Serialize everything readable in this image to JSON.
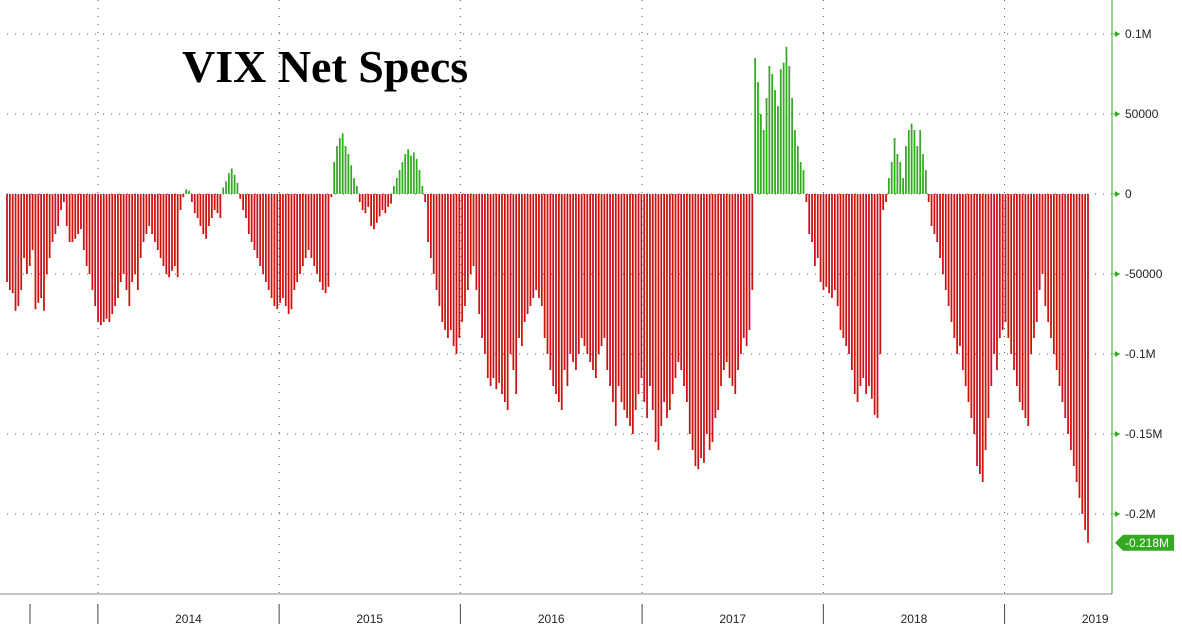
{
  "chart_data": {
    "type": "bar",
    "title": "VIX Net Specs",
    "xlabel": "",
    "ylabel": "",
    "frequency": "weekly",
    "x_start": "2013-07-02",
    "x_end": "2019-06-18",
    "ylim": [
      -240000,
      120000
    ],
    "grid": true,
    "colors": {
      "positive": "#33aa22",
      "negative": "#cc1111",
      "axis": "#33aa22",
      "last_label_bg": "#33aa22"
    },
    "y_ticks": [
      {
        "value": 100000,
        "label": "0.1M"
      },
      {
        "value": 50000,
        "label": "50000"
      },
      {
        "value": 0,
        "label": "0"
      },
      {
        "value": -50000,
        "label": "-50000"
      },
      {
        "value": -100000,
        "label": "-0.1M"
      },
      {
        "value": -150000,
        "label": "-0.15M"
      },
      {
        "value": -200000,
        "label": "-0.2M"
      }
    ],
    "x_ticks": [
      "2014",
      "2015",
      "2016",
      "2017",
      "2018",
      "2019"
    ],
    "last_value_label": "-0.218M",
    "values": [
      -55000,
      -60000,
      -62000,
      -73000,
      -70000,
      -60000,
      -40000,
      -50000,
      -45000,
      -35000,
      -72000,
      -68000,
      -65000,
      -73000,
      -50000,
      -40000,
      -30000,
      -25000,
      -20000,
      -10000,
      -5000,
      -20000,
      -30000,
      -30000,
      -28000,
      -25000,
      -22000,
      -35000,
      -45000,
      -50000,
      -60000,
      -70000,
      -80000,
      -82000,
      -80000,
      -78000,
      -80000,
      -75000,
      -70000,
      -65000,
      -55000,
      -50000,
      -60000,
      -70000,
      -55000,
      -50000,
      -60000,
      -40000,
      -30000,
      -25000,
      -20000,
      -25000,
      -30000,
      -35000,
      -40000,
      -45000,
      -50000,
      -52000,
      -48000,
      -45000,
      -52000,
      -10000,
      -2000,
      3000,
      2000,
      -5000,
      -12000,
      -15000,
      -20000,
      -25000,
      -28000,
      -20000,
      -15000,
      -10000,
      -12000,
      -15000,
      4000,
      8000,
      13000,
      16000,
      12000,
      7000,
      -3000,
      -10000,
      -15000,
      -25000,
      -30000,
      -35000,
      -40000,
      -45000,
      -50000,
      -55000,
      -60000,
      -65000,
      -70000,
      -72000,
      -68000,
      -65000,
      -70000,
      -75000,
      -72000,
      -60000,
      -55000,
      -50000,
      -45000,
      -40000,
      -35000,
      -40000,
      -45000,
      -50000,
      -55000,
      -60000,
      -62000,
      -58000,
      -2000,
      20000,
      30000,
      35000,
      38000,
      30000,
      25000,
      18000,
      10000,
      5000,
      -5000,
      -10000,
      -12000,
      -8000,
      -20000,
      -22000,
      -18000,
      -14000,
      -10000,
      -12000,
      -8000,
      -6000,
      5000,
      10000,
      15000,
      20000,
      25000,
      28000,
      24000,
      26000,
      22000,
      15000,
      5000,
      -5000,
      -30000,
      -40000,
      -50000,
      -60000,
      -70000,
      -80000,
      -85000,
      -90000,
      -85000,
      -95000,
      -100000,
      -90000,
      -80000,
      -70000,
      -60000,
      -50000,
      -45000,
      -60000,
      -75000,
      -90000,
      -100000,
      -115000,
      -120000,
      -115000,
      -122000,
      -118000,
      -125000,
      -130000,
      -135000,
      -100000,
      -110000,
      -125000,
      -90000,
      -95000,
      -80000,
      -75000,
      -70000,
      -65000,
      -60000,
      -65000,
      -70000,
      -90000,
      -100000,
      -110000,
      -120000,
      -125000,
      -130000,
      -135000,
      -110000,
      -120000,
      -100000,
      -105000,
      -110000,
      -100000,
      -90000,
      -95000,
      -100000,
      -105000,
      -110000,
      -115000,
      -100000,
      -95000,
      -90000,
      -110000,
      -120000,
      -130000,
      -145000,
      -120000,
      -130000,
      -135000,
      -140000,
      -145000,
      -150000,
      -135000,
      -125000,
      -115000,
      -130000,
      -140000,
      -120000,
      -135000,
      -155000,
      -160000,
      -145000,
      -130000,
      -140000,
      -135000,
      -125000,
      -115000,
      -105000,
      -110000,
      -120000,
      -130000,
      -150000,
      -160000,
      -170000,
      -172000,
      -165000,
      -168000,
      -150000,
      -160000,
      -155000,
      -140000,
      -135000,
      -120000,
      -110000,
      -105000,
      -115000,
      -120000,
      -125000,
      -110000,
      -100000,
      -90000,
      -95000,
      -85000,
      -60000,
      85000,
      70000,
      50000,
      40000,
      60000,
      80000,
      75000,
      65000,
      55000,
      78000,
      82000,
      92000,
      80000,
      60000,
      40000,
      30000,
      20000,
      15000,
      -5000,
      -25000,
      -30000,
      -45000,
      -40000,
      -55000,
      -60000,
      -58000,
      -62000,
      -65000,
      -60000,
      -70000,
      -85000,
      -90000,
      -95000,
      -100000,
      -110000,
      -125000,
      -130000,
      -120000,
      -115000,
      -125000,
      -120000,
      -128000,
      -138000,
      -140000,
      -100000,
      -10000,
      -5000,
      10000,
      20000,
      35000,
      25000,
      20000,
      10000,
      30000,
      40000,
      44000,
      40000,
      30000,
      40000,
      25000,
      15000,
      -5000,
      -20000,
      -25000,
      -30000,
      -40000,
      -50000,
      -60000,
      -70000,
      -80000,
      -90000,
      -100000,
      -95000,
      -110000,
      -120000,
      -130000,
      -140000,
      -150000,
      -170000,
      -175000,
      -180000,
      -160000,
      -140000,
      -120000,
      -100000,
      -110000,
      -90000,
      -85000,
      -80000,
      -90000,
      -100000,
      -110000,
      -120000,
      -130000,
      -135000,
      -140000,
      -145000,
      -100000,
      -90000,
      -80000,
      -60000,
      -50000,
      -70000,
      -80000,
      -90000,
      -100000,
      -110000,
      -120000,
      -130000,
      -140000,
      -150000,
      -160000,
      -170000,
      -180000,
      -190000,
      -200000,
      -210000,
      -218000
    ]
  }
}
